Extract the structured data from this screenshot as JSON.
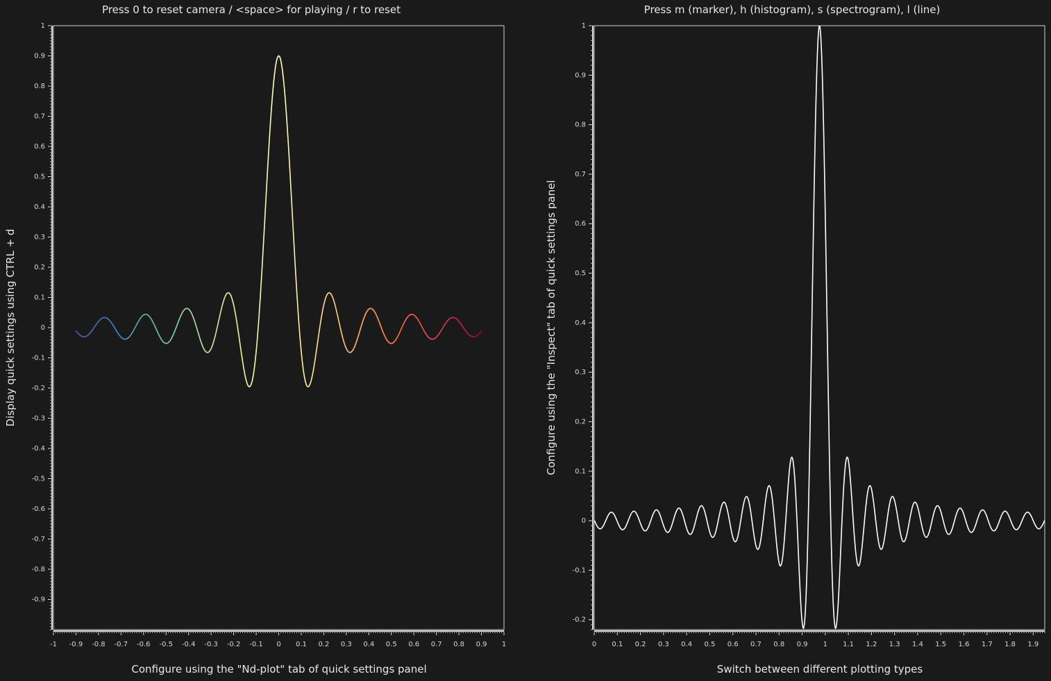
{
  "chart_data": [
    {
      "type": "line",
      "title": "Press 0 to reset camera / <space> for playing / r to reset",
      "xlabel": "Configure using the \"Nd-plot\" tab of quick settings panel",
      "ylabel": "Display quick settings using CTRL + d",
      "xlim": [
        -1,
        1
      ],
      "ylim": [
        -1,
        1
      ],
      "x_ticks": [
        "-1",
        "-0.9",
        "-0.8",
        "-0.7",
        "-0.6",
        "-0.5",
        "-0.4",
        "-0.3",
        "-0.2",
        "-0.1",
        "0",
        "0.1",
        "0.2",
        "0.3",
        "0.4",
        "0.5",
        "0.6",
        "0.7",
        "0.8",
        "0.9",
        "1"
      ],
      "y_ticks": [
        "1",
        "0.9",
        "0.8",
        "0.7",
        "0.6",
        "0.5",
        "0.4",
        "0.3",
        "0.2",
        "0.1",
        "0",
        "-0.1",
        "-0.2",
        "-0.3",
        "-0.4",
        "-0.5",
        "-0.6",
        "-0.7",
        "-0.8",
        "-0.9"
      ],
      "series": [
        {
          "function": "0.9 * sinc(x)",
          "x_range": [
            -0.9,
            0.9
          ],
          "peak": 0.9,
          "first_minimum": -0.22,
          "zero_spacing": 0.0911,
          "color_map": "spectral",
          "colors": [
            "#5e4fa2",
            "#3288bd",
            "#66c2a5",
            "#abdda4",
            "#e6f598",
            "#ffffbf",
            "#fee08b",
            "#fdae61",
            "#f46d43",
            "#d53e4f",
            "#9e0142"
          ]
        }
      ],
      "grid": false
    },
    {
      "type": "line",
      "title": "Press m (marker), h (histogram), s (spectrogram), l (line)",
      "xlabel": "Switch between different plotting types",
      "ylabel": "Configure using the \"Inspect\" tab of quick settings panel",
      "xlim": [
        0,
        1.95
      ],
      "ylim": [
        -0.22,
        1.0
      ],
      "x_ticks": [
        "0",
        "0.1",
        "0.2",
        "0.3",
        "0.4",
        "0.5",
        "0.6",
        "0.7",
        "0.8",
        "0.9",
        "1",
        "1.1",
        "1.2",
        "1.3",
        "1.4",
        "1.5",
        "1.6",
        "1.7",
        "1.8",
        "1.9"
      ],
      "y_ticks": [
        "1",
        "0.9",
        "0.8",
        "0.7",
        "0.6",
        "0.5",
        "0.4",
        "0.3",
        "0.2",
        "0.1",
        "0",
        "-0.1",
        "-0.2"
      ],
      "series": [
        {
          "function": "sinc(x - 0.975)",
          "x_range": [
            0,
            1.95
          ],
          "center": 0.975,
          "peak": 1.0,
          "zero_spacing": 0.0487,
          "color": "#ffffff"
        }
      ],
      "grid": false
    }
  ]
}
